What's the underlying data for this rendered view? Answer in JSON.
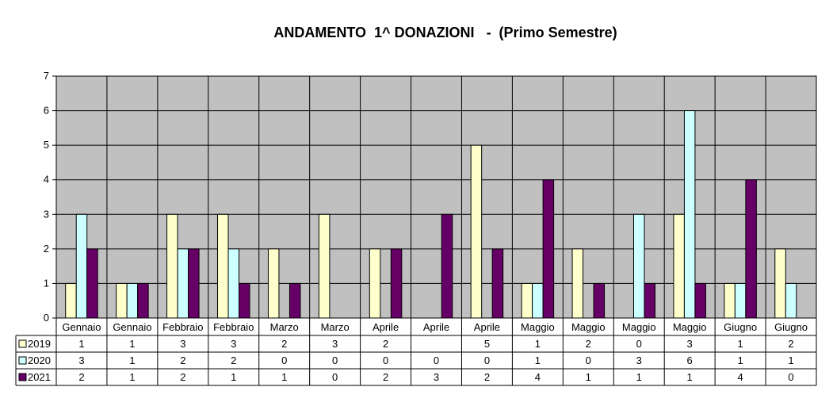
{
  "chart_data": {
    "type": "bar",
    "title": "ANDAMENTO  1^ DONAZIONI   -  (Primo Semestre)",
    "xlabel": "",
    "ylabel": "",
    "ylim": [
      0,
      7
    ],
    "yticks": [
      "0",
      "1",
      "2",
      "3",
      "4",
      "5",
      "6",
      "7"
    ],
    "grid": true,
    "legend_placement": "data-table-left",
    "categories": [
      "Gennaio",
      "Gennaio",
      "Febbraio",
      "Febbraio",
      "Marzo",
      "Marzo",
      "Aprile",
      "Aprile",
      "Aprile",
      "Maggio",
      "Maggio",
      "Maggio",
      "Maggio",
      "Giugno",
      "Giugno"
    ],
    "series": [
      {
        "name": "2019",
        "color": "#FFFFCC",
        "values": [
          1,
          1,
          3,
          3,
          2,
          3,
          2,
          null,
          5,
          1,
          2,
          0,
          3,
          1,
          2
        ],
        "table_values": [
          "1",
          "1",
          "3",
          "3",
          "2",
          "3",
          "2",
          "",
          "5",
          "1",
          "2",
          "0",
          "3",
          "1",
          "2"
        ]
      },
      {
        "name": "2020",
        "color": "#CCFFFF",
        "values": [
          3,
          1,
          2,
          2,
          0,
          0,
          0,
          0,
          0,
          1,
          0,
          3,
          6,
          1,
          1
        ],
        "table_values": [
          "3",
          "1",
          "2",
          "2",
          "0",
          "0",
          "0",
          "0",
          "0",
          "1",
          "0",
          "3",
          "6",
          "1",
          "1"
        ]
      },
      {
        "name": "2021",
        "color": "#660066",
        "values": [
          2,
          1,
          2,
          1,
          1,
          0,
          2,
          3,
          2,
          4,
          1,
          1,
          1,
          4,
          0
        ],
        "table_values": [
          "2",
          "1",
          "2",
          "1",
          "1",
          "0",
          "2",
          "3",
          "2",
          "4",
          "1",
          "1",
          "1",
          "4",
          "0"
        ]
      }
    ],
    "colors": {
      "plot_area": "#C0C0C0",
      "gridline": "#000000",
      "border": "#000000"
    }
  }
}
